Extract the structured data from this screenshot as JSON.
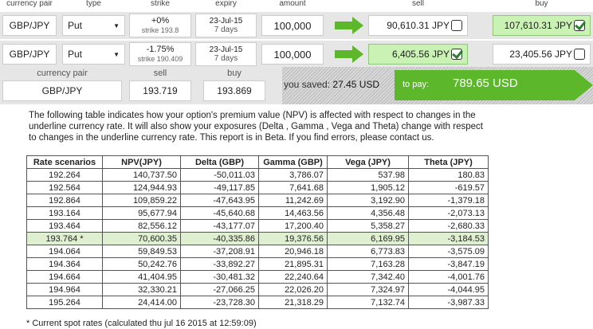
{
  "headers": {
    "currency_pair": "currency pair",
    "type": "type",
    "strike": "strike",
    "expiry": "expiry",
    "amount": "amount",
    "sell": "sell",
    "buy": "buy"
  },
  "options": [
    {
      "pair": "GBP/JPY",
      "type": "Put",
      "strike_pct": "+0%",
      "strike_val": "strike 193.8",
      "expiry_date": "23-Jul-15",
      "expiry_days": "7 days",
      "amount": "100,000",
      "sell": "90,610.31 JPY",
      "sell_checked": false,
      "buy": "107,610.31 JPY",
      "buy_checked": true
    },
    {
      "pair": "GBP/JPY",
      "type": "Put",
      "strike_pct": "-1.75%",
      "strike_val": "strike 190.409",
      "expiry_date": "23-Jul-15",
      "expiry_days": "7 days",
      "amount": "100,000",
      "sell": "6,405.56 JPY",
      "sell_checked": true,
      "buy": "23,405.56 JPY",
      "buy_checked": false
    }
  ],
  "summary": {
    "pair_label": "currency pair",
    "pair": "GBP/JPY",
    "sell_label": "sell",
    "sell": "193.719",
    "buy_label": "buy",
    "buy": "193.869",
    "saved_label": "you saved:",
    "saved": "27.45 USD",
    "pay_label": "to pay:",
    "pay": "789.65 USD"
  },
  "description": "The following table indicates how your option's premium value (NPV) is affected with respect to changes in the underline currency rate. It will also show your exposures (Delta , Gamma , Vega and Theta) change with respect to changes in the underline currency rate. This report is in Beta. If you find errors, please contact us.",
  "table": {
    "columns": [
      "Rate scenarios",
      "NPV(JPY)",
      "Delta (GBP)",
      "Gamma (GBP)",
      "Vega (JPY)",
      "Theta (JPY)"
    ],
    "rows": [
      [
        "192.264",
        "140,737.50",
        "-50,011.03",
        "3,786.07",
        "537.98",
        "180.83"
      ],
      [
        "192.564",
        "124,944.93",
        "-49,117.85",
        "7,641.68",
        "1,905.12",
        "-619.57"
      ],
      [
        "192.864",
        "109,859.22",
        "-47,643.95",
        "11,242.69",
        "3,192.90",
        "-1,379.18"
      ],
      [
        "193.164",
        "95,677.94",
        "-45,640.68",
        "14,463.56",
        "4,356.48",
        "-2,073.13"
      ],
      [
        "193.464",
        "82,556.12",
        "-43,177.07",
        "17,200.40",
        "5,358.27",
        "-2,680.33"
      ],
      [
        "193.764 *",
        "70,600.35",
        "-40,335.86",
        "19,376.56",
        "6,169.95",
        "-3,184.53"
      ],
      [
        "194.064",
        "59,849.53",
        "-37,208.91",
        "20,946.18",
        "6,773.83",
        "-3,575.09"
      ],
      [
        "194.364",
        "50,242.76",
        "-33,892.27",
        "21,895.31",
        "7,163.28",
        "-3,847.19"
      ],
      [
        "194.664",
        "41,404.95",
        "-30,481.32",
        "22,240.64",
        "7,342.40",
        "-4,001.76"
      ],
      [
        "194.964",
        "32,330.21",
        "-27,066.25",
        "22,026.20",
        "7,324.97",
        "-4,044.95"
      ],
      [
        "195.264",
        "24,414.00",
        "-23,728.30",
        "21,318.29",
        "7,132.74",
        "-3,987.33"
      ]
    ],
    "highlight_row": 5
  },
  "footnote": "* Current spot rates (calculated thu jul 16 2015 at 12:59:09)",
  "colors": {
    "accent_green": "#5cb82a",
    "selected_bg": "#c9f2b4"
  }
}
